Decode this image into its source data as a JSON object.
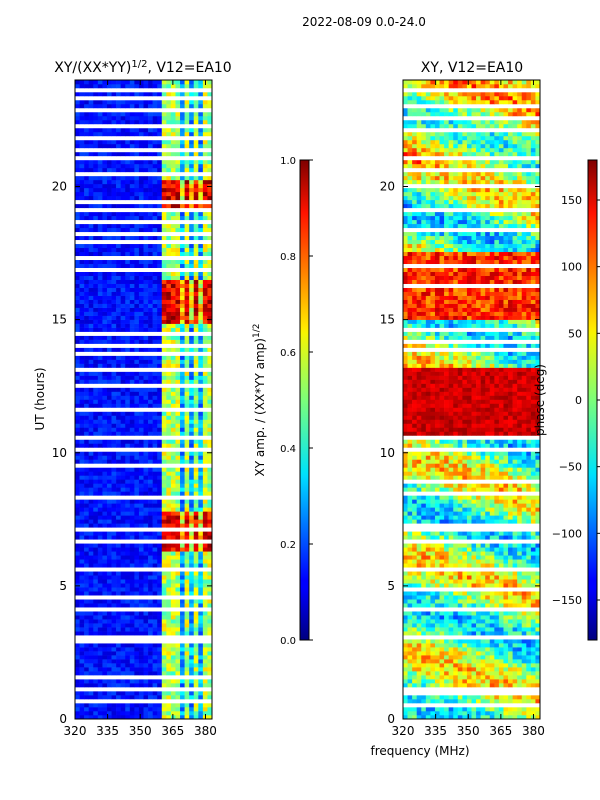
{
  "figure": {
    "suptitle": "2022-08-09 0.0-24.0"
  },
  "chart_data": [
    {
      "type": "heatmap",
      "title": "XY/(XX*YY)^1/2, V12=EA10",
      "title_main": "XY/(XX*YY)",
      "title_sup": "1/2",
      "title_tail": ", V12=EA10",
      "xlabel": "",
      "ylabel": "UT (hours)",
      "xlim": [
        320,
        383
      ],
      "ylim": [
        0,
        24
      ],
      "x_ticks": [
        320,
        335,
        350,
        365,
        380
      ],
      "y_ticks": [
        0,
        5,
        10,
        15,
        20
      ],
      "colorbar": {
        "label": "XY amp. / (XX*YY amp)^1/2",
        "label_main": "XY amp. / (XX*YY amp)",
        "label_sup": "1/2",
        "range": [
          0.0,
          1.0
        ],
        "ticks": [
          "0.0",
          "0.2",
          "0.4",
          "0.6",
          "0.8",
          "1.0"
        ],
        "tick_values": [
          0.0,
          0.2,
          0.4,
          0.6,
          0.8,
          1.0
        ]
      },
      "bright_channels_mhz": [
        362,
        366,
        371,
        376,
        381
      ],
      "high_amplitude_hours": [
        [
          6.3,
          7.8
        ],
        [
          14.8,
          16.5
        ],
        [
          19.2,
          20.3
        ]
      ],
      "flagged_hours": [
        0.6,
        1.0,
        1.5,
        2.9,
        3.0,
        4.0,
        4.5,
        5.5,
        6.6,
        7.0,
        8.3,
        9.5,
        10.0,
        10.5,
        11.6,
        12.5,
        13.0,
        13.7,
        14.0,
        14.4,
        16.8,
        17.2,
        17.8,
        18.2,
        18.6,
        19.0,
        19.3,
        20.4,
        21.0,
        21.3,
        21.8,
        22.2,
        22.8,
        23.2,
        23.5
      ]
    },
    {
      "type": "heatmap",
      "title": "XY, V12=EA10",
      "xlabel": "frequency (MHz)",
      "ylabel": "",
      "xlim": [
        320,
        383
      ],
      "ylim": [
        0,
        24
      ],
      "x_ticks": [
        320,
        335,
        350,
        365,
        380
      ],
      "y_ticks": [
        0,
        5,
        10,
        15,
        20
      ],
      "colorbar": {
        "label": "phase (deg)",
        "range": [
          -180,
          180
        ],
        "ticks": [
          "150",
          "100",
          "50",
          "0",
          "−50",
          "−100",
          "−150"
        ],
        "tick_values": [
          150,
          100,
          50,
          0,
          -50,
          -100,
          -150
        ]
      },
      "flagged_hours": [
        0.4,
        0.9,
        1.0,
        3.0,
        4.0,
        4.8,
        5.6,
        6.6,
        7.0,
        7.2,
        8.4,
        8.9,
        10.0,
        10.5,
        13.8,
        14.1,
        14.5,
        16.2,
        17.0,
        18.3,
        19.0,
        20.0,
        20.5,
        21.0,
        22.0,
        22.5,
        23.0,
        23.5
      ]
    }
  ]
}
